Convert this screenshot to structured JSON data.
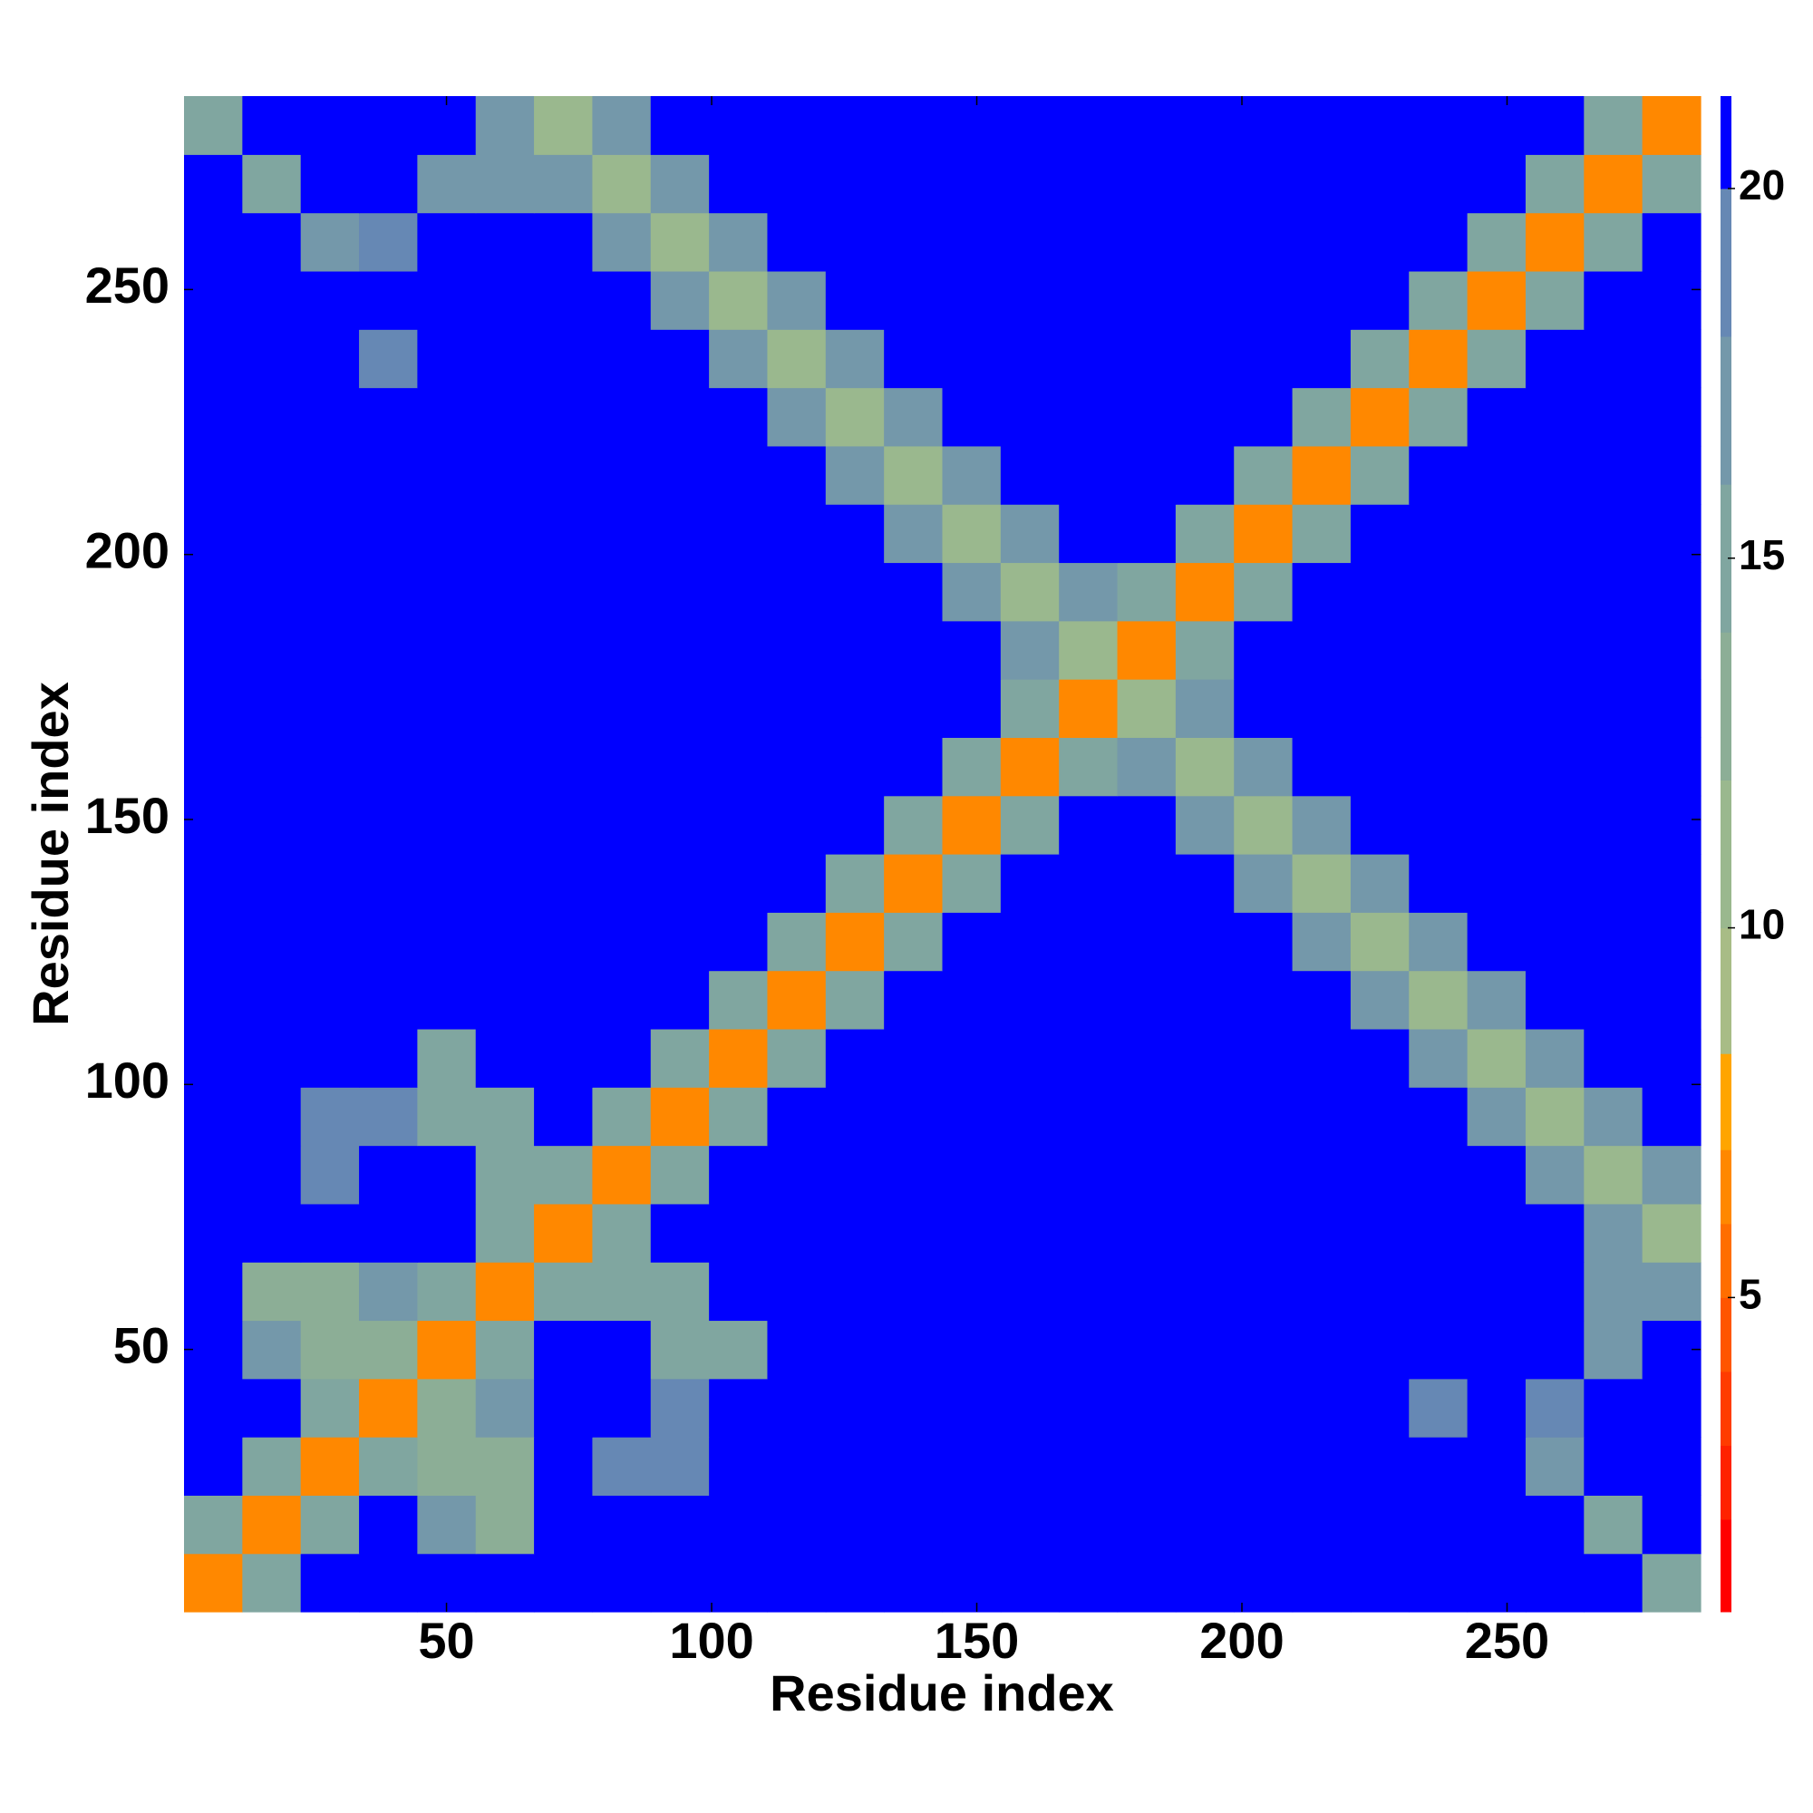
{
  "chart_data": {
    "type": "heatmap",
    "xlabel": "Residue index",
    "ylabel": "Residue index",
    "x": [
      6,
      17,
      28,
      39,
      50,
      61,
      72,
      83,
      94,
      105,
      116,
      127,
      138,
      149,
      160,
      171,
      182,
      193,
      204,
      215,
      226,
      237,
      248,
      259,
      270,
      281
    ],
    "y": [
      6,
      17,
      28,
      39,
      50,
      61,
      72,
      83,
      94,
      105,
      116,
      127,
      138,
      149,
      160,
      171,
      182,
      193,
      204,
      215,
      226,
      237,
      248,
      259,
      270,
      281
    ],
    "z": [
      [
        7,
        16,
        21,
        21,
        21,
        21,
        21,
        21,
        21,
        21,
        21,
        21,
        21,
        21,
        21,
        21,
        21,
        21,
        21,
        21,
        21,
        21,
        21,
        21,
        21,
        15
      ],
      [
        16,
        7,
        16,
        21,
        18,
        13,
        21,
        21,
        21,
        21,
        21,
        21,
        21,
        21,
        21,
        21,
        21,
        21,
        21,
        21,
        21,
        21,
        21,
        21,
        16,
        21
      ],
      [
        21,
        16,
        7,
        16,
        13,
        13,
        21,
        19,
        19,
        21,
        21,
        21,
        21,
        21,
        21,
        21,
        21,
        21,
        21,
        21,
        21,
        21,
        21,
        17,
        21,
        21
      ],
      [
        21,
        21,
        16,
        7,
        13,
        18,
        21,
        21,
        19,
        21,
        21,
        21,
        21,
        21,
        21,
        21,
        21,
        21,
        21,
        21,
        21,
        19,
        21,
        19,
        21,
        21
      ],
      [
        21,
        18,
        13,
        13,
        7,
        16,
        21,
        21,
        15,
        15,
        21,
        21,
        21,
        21,
        21,
        21,
        21,
        21,
        21,
        21,
        21,
        21,
        21,
        21,
        18,
        21
      ],
      [
        21,
        13,
        13,
        18,
        16,
        7,
        16,
        15,
        15,
        21,
        21,
        21,
        21,
        21,
        21,
        21,
        21,
        21,
        21,
        21,
        21,
        21,
        21,
        21,
        17,
        17
      ],
      [
        21,
        21,
        21,
        21,
        21,
        16,
        7,
        15,
        21,
        21,
        21,
        21,
        21,
        21,
        21,
        21,
        21,
        21,
        21,
        21,
        21,
        21,
        21,
        21,
        17,
        12
      ],
      [
        21,
        21,
        19,
        21,
        21,
        15,
        15,
        7,
        16,
        21,
        21,
        21,
        21,
        21,
        21,
        21,
        21,
        21,
        21,
        21,
        21,
        21,
        21,
        17,
        12,
        17
      ],
      [
        21,
        21,
        19,
        19,
        15,
        15,
        21,
        16,
        7,
        16,
        21,
        21,
        21,
        21,
        21,
        21,
        21,
        21,
        21,
        21,
        21,
        21,
        17,
        12,
        17,
        21
      ],
      [
        21,
        21,
        21,
        21,
        15,
        21,
        21,
        21,
        16,
        7,
        16,
        21,
        21,
        21,
        21,
        21,
        21,
        21,
        21,
        21,
        21,
        17,
        12,
        17,
        21,
        21
      ],
      [
        21,
        21,
        21,
        21,
        21,
        21,
        21,
        21,
        21,
        16,
        7,
        16,
        21,
        21,
        21,
        21,
        21,
        21,
        21,
        21,
        17,
        12,
        17,
        21,
        21,
        21
      ],
      [
        21,
        21,
        21,
        21,
        21,
        21,
        21,
        21,
        21,
        21,
        16,
        7,
        16,
        21,
        21,
        21,
        21,
        21,
        21,
        17,
        12,
        17,
        21,
        21,
        21,
        21
      ],
      [
        21,
        21,
        21,
        21,
        21,
        21,
        21,
        21,
        21,
        21,
        21,
        16,
        7,
        16,
        21,
        21,
        21,
        21,
        17,
        12,
        17,
        21,
        21,
        21,
        21,
        21
      ],
      [
        21,
        21,
        21,
        21,
        21,
        21,
        21,
        21,
        21,
        21,
        21,
        21,
        16,
        7,
        16,
        21,
        21,
        17,
        12,
        17,
        21,
        21,
        21,
        21,
        21,
        21
      ],
      [
        21,
        21,
        21,
        21,
        21,
        21,
        21,
        21,
        21,
        21,
        21,
        21,
        21,
        16,
        7,
        16,
        17,
        12,
        17,
        21,
        21,
        21,
        21,
        21,
        21,
        21
      ],
      [
        21,
        21,
        21,
        21,
        21,
        21,
        21,
        21,
        21,
        21,
        21,
        21,
        21,
        21,
        16,
        7,
        12,
        17,
        21,
        21,
        21,
        21,
        21,
        21,
        21,
        21
      ],
      [
        21,
        21,
        21,
        21,
        21,
        21,
        21,
        21,
        21,
        21,
        21,
        21,
        21,
        21,
        17,
        12,
        7,
        16,
        21,
        21,
        21,
        21,
        21,
        21,
        21,
        21
      ],
      [
        21,
        21,
        21,
        21,
        21,
        21,
        21,
        21,
        21,
        21,
        21,
        21,
        21,
        17,
        12,
        17,
        16,
        7,
        16,
        21,
        21,
        21,
        21,
        21,
        21,
        21
      ],
      [
        21,
        21,
        21,
        21,
        21,
        21,
        21,
        21,
        21,
        21,
        21,
        21,
        17,
        12,
        17,
        21,
        21,
        16,
        7,
        16,
        21,
        21,
        21,
        21,
        21,
        21
      ],
      [
        21,
        21,
        21,
        21,
        21,
        21,
        21,
        21,
        21,
        21,
        21,
        17,
        12,
        17,
        21,
        21,
        21,
        21,
        16,
        7,
        16,
        21,
        21,
        21,
        21,
        21
      ],
      [
        21,
        21,
        21,
        21,
        21,
        21,
        21,
        21,
        21,
        21,
        17,
        12,
        17,
        21,
        21,
        21,
        21,
        21,
        21,
        16,
        7,
        16,
        21,
        21,
        21,
        21
      ],
      [
        21,
        21,
        21,
        19,
        21,
        21,
        21,
        21,
        21,
        17,
        12,
        17,
        21,
        21,
        21,
        21,
        21,
        21,
        21,
        21,
        16,
        7,
        16,
        21,
        21,
        21
      ],
      [
        21,
        21,
        21,
        21,
        21,
        21,
        21,
        21,
        17,
        12,
        17,
        21,
        21,
        21,
        21,
        21,
        21,
        21,
        21,
        21,
        21,
        16,
        7,
        16,
        21,
        21
      ],
      [
        21,
        21,
        17,
        19,
        21,
        21,
        21,
        17,
        12,
        17,
        21,
        21,
        21,
        21,
        21,
        21,
        21,
        21,
        21,
        21,
        21,
        21,
        16,
        7,
        16,
        21
      ],
      [
        21,
        16,
        21,
        21,
        18,
        17,
        17,
        12,
        17,
        21,
        21,
        21,
        21,
        21,
        21,
        21,
        21,
        21,
        21,
        21,
        21,
        21,
        21,
        16,
        7,
        16
      ],
      [
        15,
        21,
        21,
        21,
        21,
        17,
        12,
        17,
        21,
        21,
        21,
        21,
        21,
        21,
        21,
        21,
        21,
        21,
        21,
        21,
        21,
        21,
        21,
        21,
        16,
        7
      ]
    ],
    "xlim": [
      0.5,
      286.5
    ],
    "ylim": [
      0.5,
      286.5
    ],
    "xticks": [
      50,
      100,
      150,
      200,
      250
    ],
    "yticks": [
      50,
      100,
      150,
      200,
      250
    ],
    "zlim": [
      0.75,
      21.25
    ],
    "zticks": [
      5,
      10,
      15,
      20
    ],
    "colorscale": [
      {
        "max": 2,
        "color": "#ff0000"
      },
      {
        "max": 3,
        "color": "#ff2200"
      },
      {
        "max": 4,
        "color": "#ff3c00"
      },
      {
        "max": 5,
        "color": "#ff5500"
      },
      {
        "max": 6,
        "color": "#ff6e00"
      },
      {
        "max": 7,
        "color": "#ff8800"
      },
      {
        "max": 8.3,
        "color": "#ffa500"
      },
      {
        "max": 10,
        "color": "#a8bc86"
      },
      {
        "max": 12,
        "color": "#9ab88e"
      },
      {
        "max": 14,
        "color": "#8cae96"
      },
      {
        "max": 16,
        "color": "#80a6a0"
      },
      {
        "max": 18,
        "color": "#7498aa"
      },
      {
        "max": 20,
        "color": "#6688b4"
      },
      {
        "max": 21.25,
        "color": "#0000ff"
      }
    ]
  }
}
